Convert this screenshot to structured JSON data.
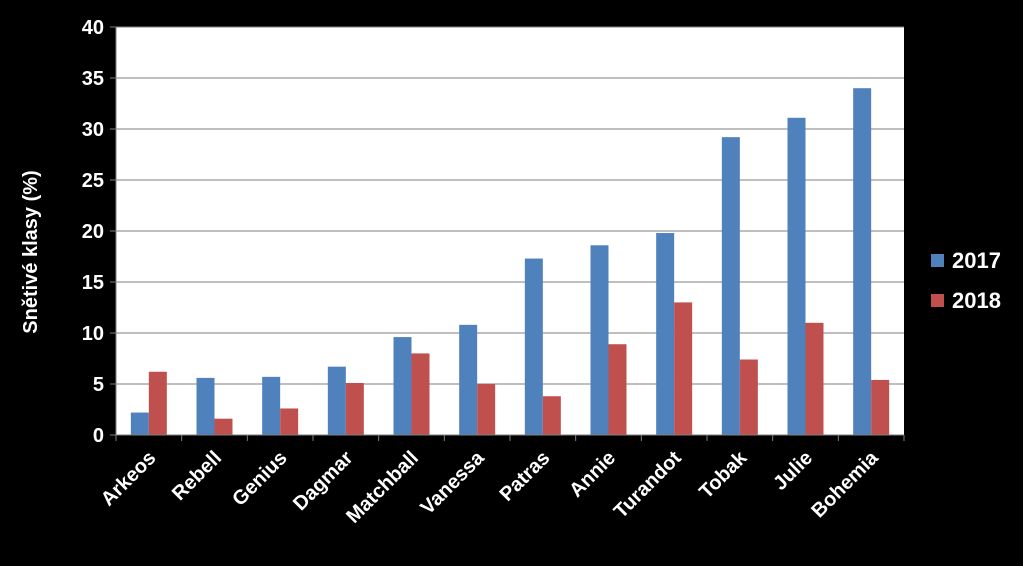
{
  "chart_data": {
    "type": "bar",
    "title": "",
    "xlabel": "",
    "ylabel": "Snětivé klasy (%)",
    "ylim": [
      0,
      40
    ],
    "yticks": [
      0,
      5,
      10,
      15,
      20,
      25,
      30,
      35,
      40
    ],
    "grid": true,
    "legend_position": "right",
    "categories": [
      "Arkeos",
      "Rebell",
      "Genius",
      "Dagmar",
      "Matchball",
      "Vanessa",
      "Patras",
      "Annie",
      "Turandot",
      "Tobak",
      "Julie",
      "Bohemia"
    ],
    "series": [
      {
        "name": "2017",
        "color": "#4f81bd",
        "values": [
          2.2,
          5.6,
          5.7,
          6.7,
          9.6,
          10.8,
          17.3,
          18.6,
          19.8,
          29.2,
          31.1,
          34.0
        ]
      },
      {
        "name": "2018",
        "color": "#c0504d",
        "values": [
          6.2,
          1.6,
          2.6,
          5.1,
          8.0,
          5.0,
          3.8,
          8.9,
          13.0,
          7.4,
          11.0,
          5.4
        ]
      }
    ]
  }
}
